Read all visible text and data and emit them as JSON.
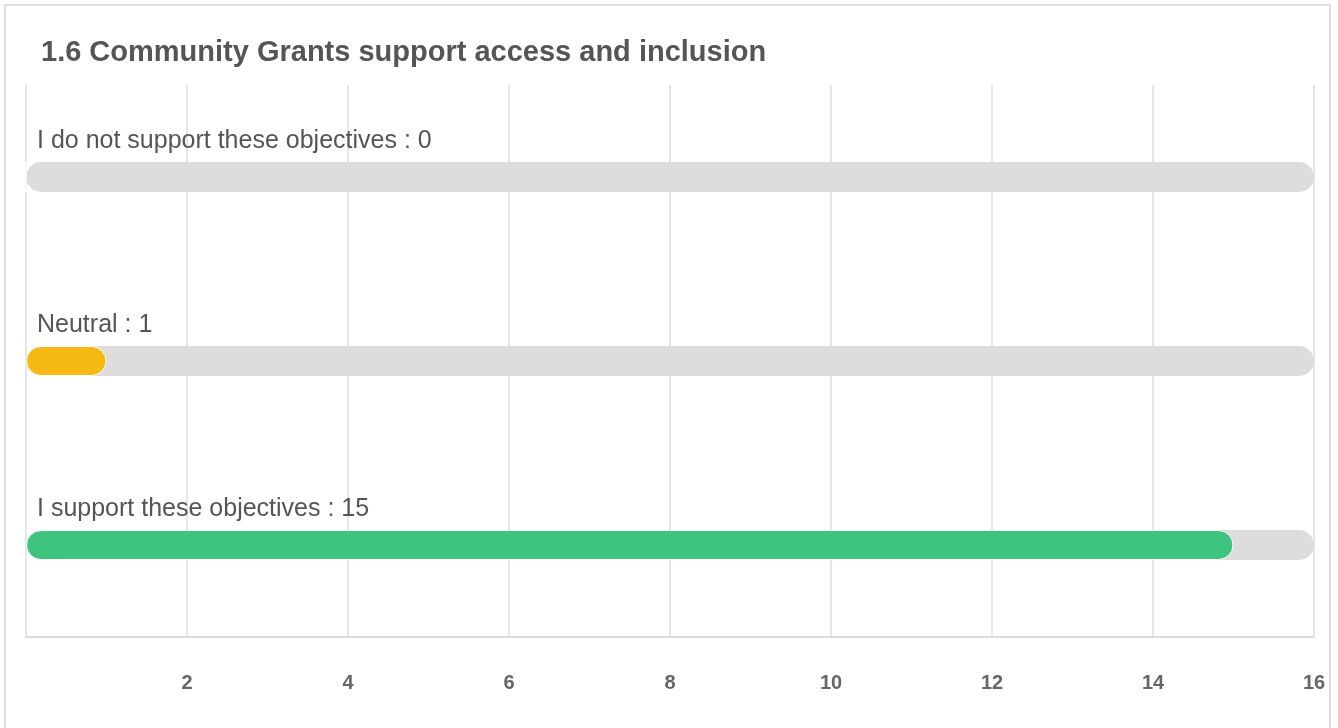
{
  "chart_data": {
    "type": "bar",
    "orientation": "horizontal",
    "title": "1.6 Community Grants support access and inclusion",
    "categories": [
      "I do not support these objectives : 0",
      "Neutral : 1",
      "I support these objectives : 15"
    ],
    "values": [
      0,
      1,
      15
    ],
    "colors": [
      null,
      "#f4b913",
      "#3ec47f"
    ],
    "xlim": [
      0,
      16
    ],
    "xticks": [
      2,
      4,
      6,
      8,
      10,
      12,
      14,
      16
    ],
    "grid": "x"
  }
}
